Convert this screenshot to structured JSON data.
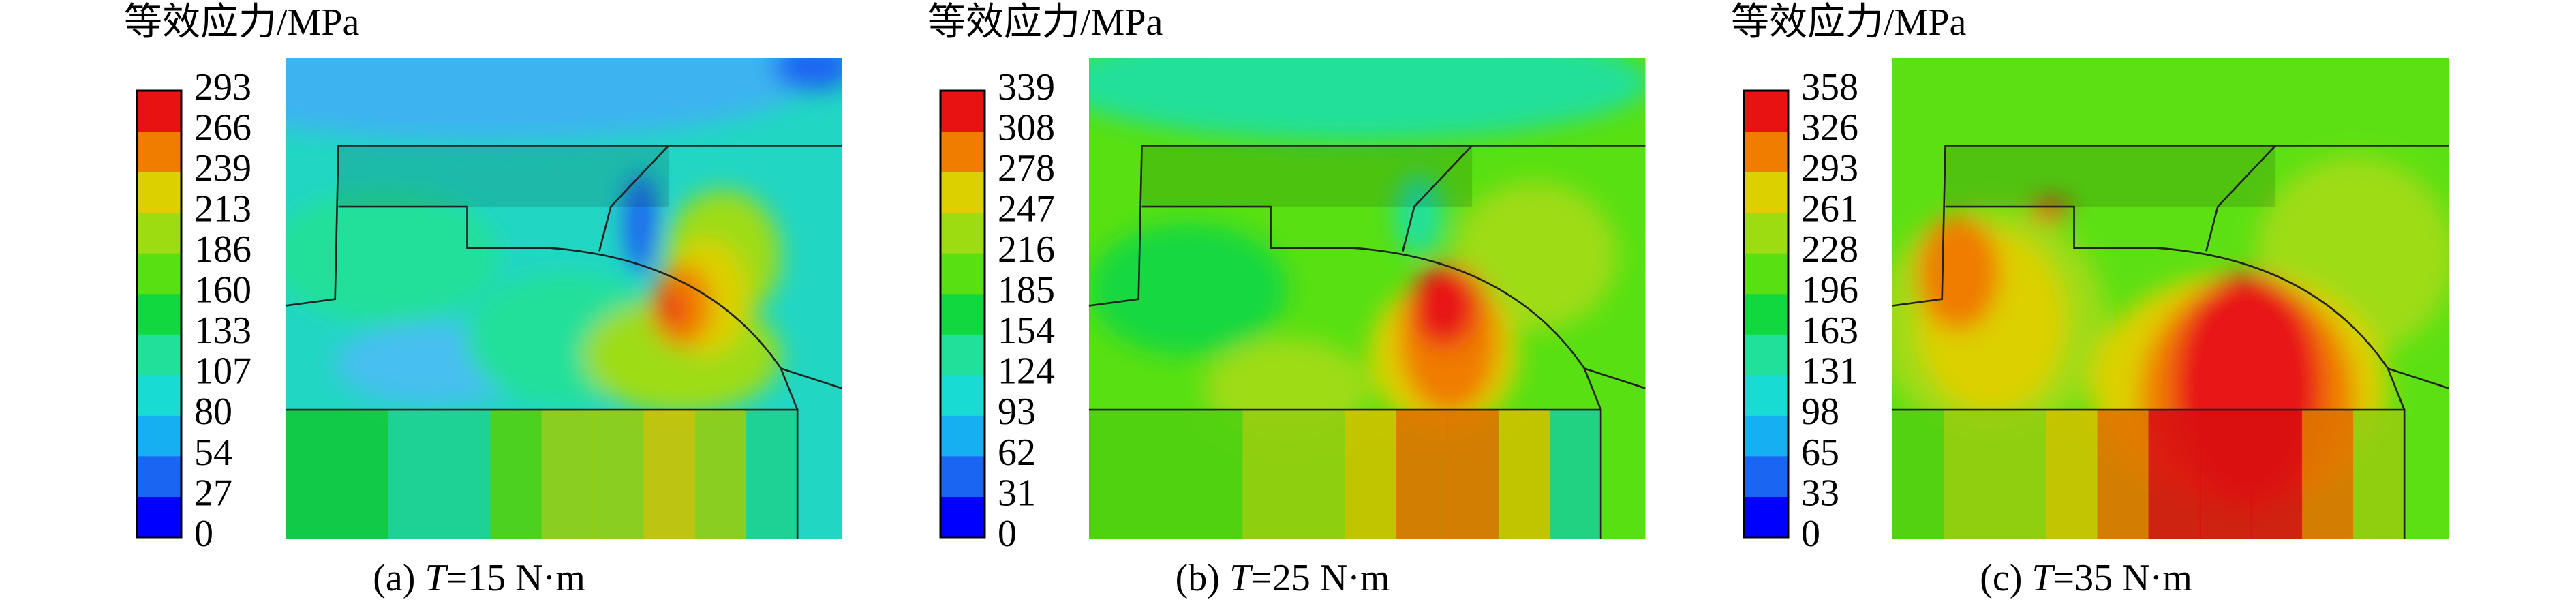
{
  "colorbar_colors": [
    "#0000ff",
    "#1a66f2",
    "#16b0f0",
    "#18dcd4",
    "#20e09a",
    "#12d840",
    "#58e012",
    "#9edc12",
    "#dcd000",
    "#f07c00",
    "#e81212"
  ],
  "panels": [
    {
      "title": "等效应力/MPa",
      "ticks": [
        293,
        266,
        239,
        213,
        186,
        160,
        133,
        107,
        80,
        54,
        27,
        0
      ],
      "caption": {
        "prefix": "(a) ",
        "variable": "T",
        "suffix": "=15 N·m"
      }
    },
    {
      "title": "等效应力/MPa",
      "ticks": [
        339,
        308,
        278,
        247,
        216,
        185,
        154,
        124,
        93,
        62,
        31,
        0
      ],
      "caption": {
        "prefix": "(b) ",
        "variable": "T",
        "suffix": "=25 N·m"
      }
    },
    {
      "title": "等效应力/MPa",
      "ticks": [
        358,
        326,
        293,
        261,
        228,
        196,
        163,
        131,
        98,
        65,
        33,
        0
      ],
      "caption": {
        "prefix": "(c) ",
        "variable": "T",
        "suffix": "=35 N·m"
      }
    }
  ]
}
